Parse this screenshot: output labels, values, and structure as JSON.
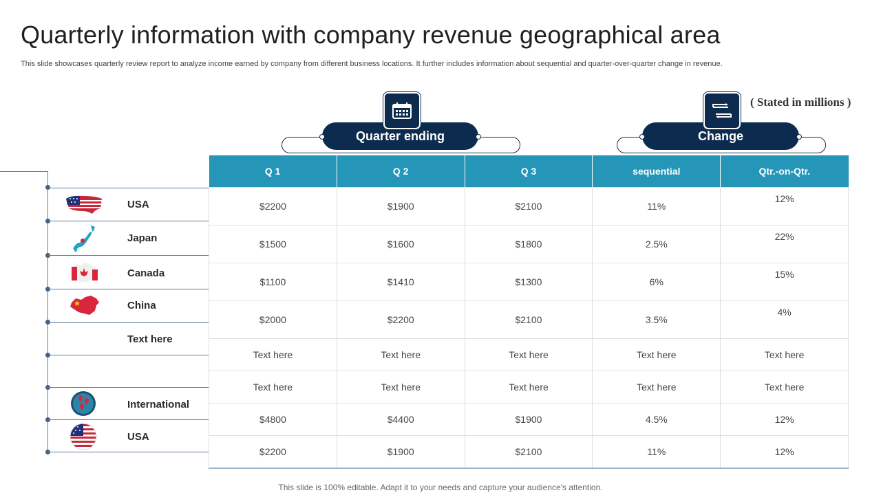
{
  "title": "Quarterly information with company revenue geographical area",
  "subtitle": "This slide showcases quarterly review report to  analyze income earned by company from different business locations. It further includes information about sequential and quarter-over-quarter change in revenue.",
  "stated": "( Stated in millions )",
  "footer": "This slide is 100% editable. Adapt it to your needs and capture your audience's attention.",
  "groups": {
    "quarter_ending": "Quarter ending",
    "change": "Change"
  },
  "icons": {
    "quarter": "calendar-icon",
    "change": "change-arrows-icon"
  },
  "colors": {
    "navy": "#0d2b4e",
    "header_teal": "#2596b8"
  },
  "table": {
    "headers": [
      "Q 1",
      "Q 2",
      "Q 3",
      "sequential",
      "Qtr.-on-Qtr."
    ],
    "rows": [
      {
        "label": "USA",
        "flag": "usa-flag-icon",
        "cells": [
          "$2200",
          "$1900",
          "$2100",
          "11%",
          "12%"
        ]
      },
      {
        "label": "Japan",
        "flag": "japan-map-icon",
        "cells": [
          "$1500",
          "$1600",
          "$1800",
          "2.5%",
          "22%"
        ]
      },
      {
        "label": "Canada",
        "flag": "canada-map-icon",
        "cells": [
          "$1100",
          "$1410",
          "$1300",
          "6%",
          "15%"
        ]
      },
      {
        "label": "China",
        "flag": "china-map-icon",
        "cells": [
          "$2000",
          "$2200",
          "$2100",
          "3.5%",
          "4%"
        ]
      },
      {
        "label": "Text here",
        "flag": "",
        "cells": [
          "Text here",
          "Text here",
          "Text here",
          "Text here",
          "Text here"
        ]
      },
      {
        "label": "",
        "flag": "",
        "cells": [
          "Text here",
          "Text here",
          "Text here",
          "Text here",
          "Text here"
        ]
      },
      {
        "label": "International",
        "flag": "globe-pins-icon",
        "cells": [
          "$4800",
          "$4400",
          "$1900",
          "4.5%",
          "12%"
        ]
      },
      {
        "label": "USA",
        "flag": "usa-round-flag-icon",
        "cells": [
          "$2200",
          "$1900",
          "$2100",
          "11%",
          "12%"
        ]
      }
    ]
  }
}
